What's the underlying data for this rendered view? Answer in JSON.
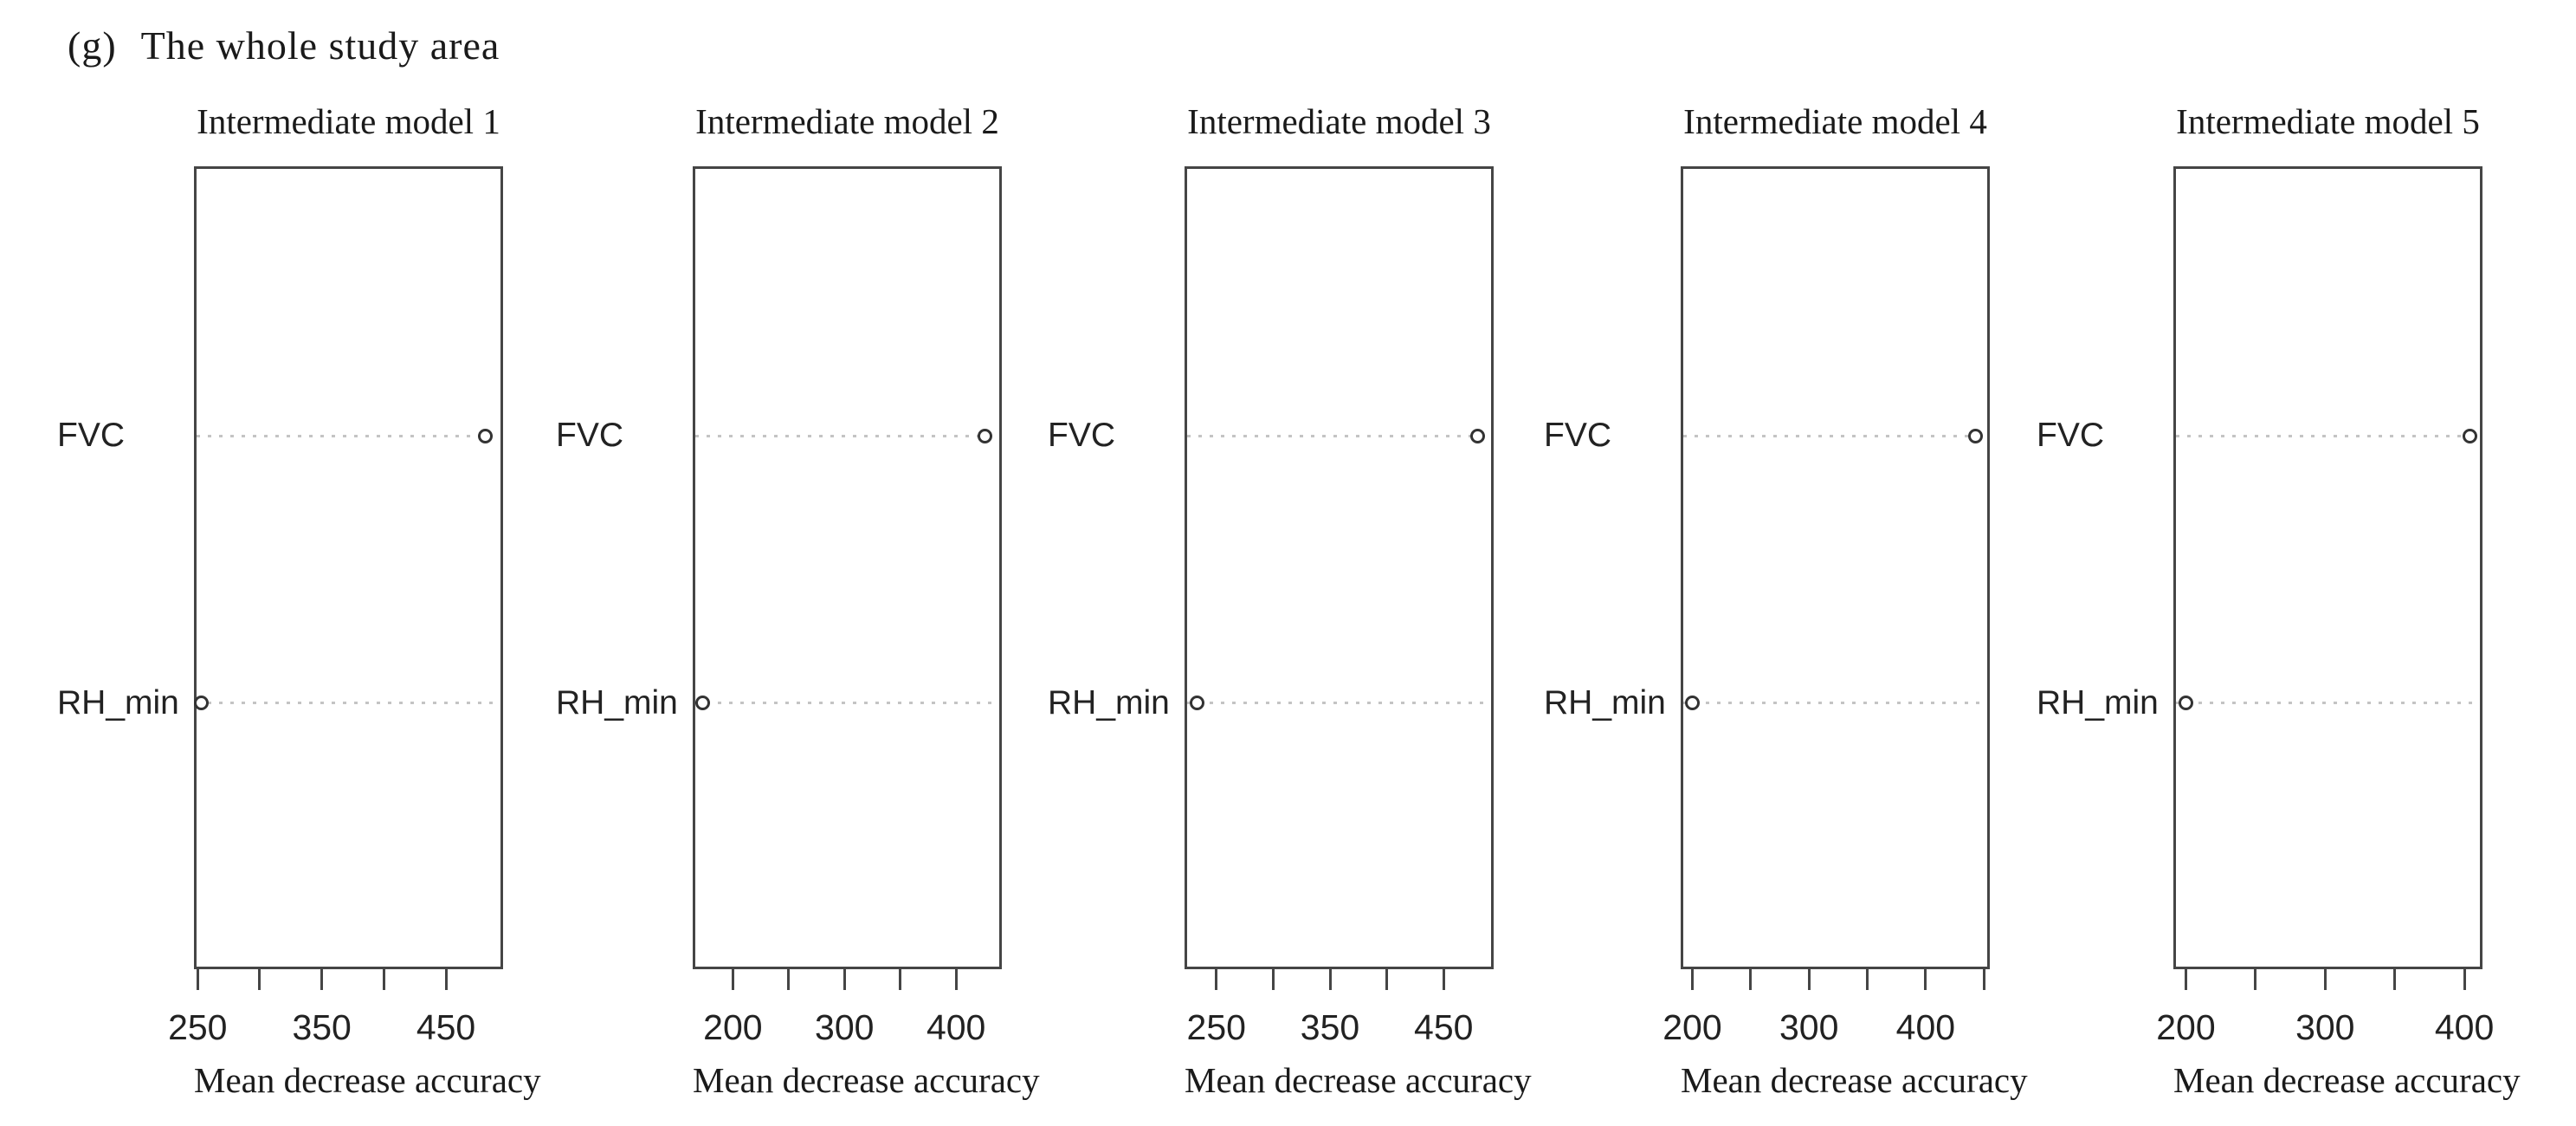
{
  "header": {
    "label": "(g)",
    "title": "The whole study area"
  },
  "style": {
    "box_border": "#454545",
    "dotted_line": "#c4c4c4",
    "marker_ring": "#333333",
    "text": "#1a1a1a"
  },
  "chart_data": [
    {
      "type": "dotplot",
      "title": "Intermediate model 1",
      "xlabel": "Mean decrease accuracy",
      "categories": [
        "FVC",
        "RH_min"
      ],
      "values": [
        482,
        253
      ],
      "xlim": [
        247,
        496
      ],
      "xticks": [
        250,
        300,
        350,
        400,
        450
      ],
      "xtick_labels": [
        "250",
        "",
        "350",
        "",
        "450"
      ],
      "grid": "dotted-leader-lines",
      "legend": "none"
    },
    {
      "type": "dotplot",
      "title": "Intermediate model 2",
      "xlabel": "Mean decrease accuracy",
      "categories": [
        "FVC",
        "RH_min"
      ],
      "values": [
        426,
        173
      ],
      "xlim": [
        164,
        441
      ],
      "xticks": [
        200,
        250,
        300,
        350,
        400
      ],
      "xtick_labels": [
        "200",
        "",
        "300",
        "",
        "400"
      ],
      "grid": "dotted-leader-lines",
      "legend": "none"
    },
    {
      "type": "dotplot",
      "title": "Intermediate model 3",
      "xlabel": "Mean decrease accuracy",
      "categories": [
        "FVC",
        "RH_min"
      ],
      "values": [
        480,
        233
      ],
      "xlim": [
        222,
        494
      ],
      "xticks": [
        250,
        300,
        350,
        400,
        450
      ],
      "xtick_labels": [
        "250",
        "",
        "350",
        "",
        "450"
      ],
      "grid": "dotted-leader-lines",
      "legend": "none"
    },
    {
      "type": "dotplot",
      "title": "Intermediate model 4",
      "xlabel": "Mean decrease accuracy",
      "categories": [
        "FVC",
        "RH_min"
      ],
      "values": [
        443,
        200
      ],
      "xlim": [
        190,
        455
      ],
      "xticks": [
        200,
        250,
        300,
        350,
        400,
        450
      ],
      "xtick_labels": [
        "200",
        "",
        "300",
        "",
        "400",
        ""
      ],
      "grid": "dotted-leader-lines",
      "legend": "none"
    },
    {
      "type": "dotplot",
      "title": "Intermediate model 5",
      "xlabel": "Mean decrease accuracy",
      "categories": [
        "FVC",
        "RH_min"
      ],
      "values": [
        404,
        200
      ],
      "xlim": [
        191,
        413
      ],
      "xticks": [
        200,
        250,
        300,
        350,
        400
      ],
      "xtick_labels": [
        "200",
        "",
        "300",
        "",
        "400"
      ],
      "grid": "dotted-leader-lines",
      "legend": "none"
    }
  ]
}
